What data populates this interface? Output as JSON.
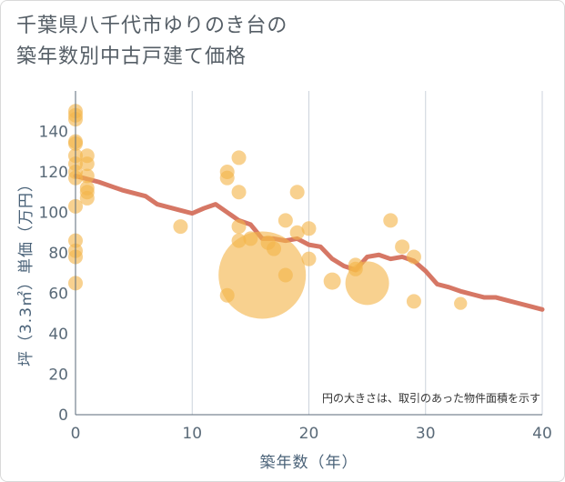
{
  "header": {
    "title_line1": "千葉県八千代市ゆりのき台の",
    "title_line2": "築年数別中古戸建て価格"
  },
  "chart_data": {
    "type": "scatter",
    "title": "千葉県八千代市ゆりのき台の築年数別中古戸建て価格",
    "xlabel": "築年数（年）",
    "ylabel": "坪（3.3㎡）単価（万円）",
    "xlim": [
      0,
      40
    ],
    "ylim": [
      0,
      160
    ],
    "xticks": [
      0,
      10,
      20,
      30,
      40
    ],
    "yticks": [
      0,
      20,
      40,
      60,
      80,
      100,
      120,
      140
    ],
    "grid": true,
    "note": "円の大きさは、取引のあった物件面積を示す",
    "colors": {
      "bubble": "#f3b54a",
      "line": "#d4705d",
      "grid": "#ccd3dc",
      "axis": "#5a6a78"
    },
    "points": [
      {
        "x": 0,
        "y": 150,
        "size": 1
      },
      {
        "x": 0,
        "y": 148,
        "size": 1
      },
      {
        "x": 0,
        "y": 146,
        "size": 1
      },
      {
        "x": 0,
        "y": 135,
        "size": 1
      },
      {
        "x": 0,
        "y": 134,
        "size": 1
      },
      {
        "x": 0,
        "y": 128,
        "size": 1
      },
      {
        "x": 0,
        "y": 124,
        "size": 1
      },
      {
        "x": 0,
        "y": 120,
        "size": 1
      },
      {
        "x": 0,
        "y": 117,
        "size": 1
      },
      {
        "x": 0,
        "y": 103,
        "size": 1
      },
      {
        "x": 0,
        "y": 86,
        "size": 1
      },
      {
        "x": 0,
        "y": 81,
        "size": 1
      },
      {
        "x": 0,
        "y": 78,
        "size": 1
      },
      {
        "x": 0,
        "y": 65,
        "size": 1
      },
      {
        "x": 1,
        "y": 128,
        "size": 1
      },
      {
        "x": 1,
        "y": 124,
        "size": 1
      },
      {
        "x": 1,
        "y": 118,
        "size": 1
      },
      {
        "x": 1,
        "y": 112,
        "size": 1
      },
      {
        "x": 1,
        "y": 110,
        "size": 1
      },
      {
        "x": 1,
        "y": 107,
        "size": 1
      },
      {
        "x": 9,
        "y": 93,
        "size": 1
      },
      {
        "x": 13,
        "y": 120,
        "size": 1
      },
      {
        "x": 13,
        "y": 117,
        "size": 1
      },
      {
        "x": 13,
        "y": 59,
        "size": 1
      },
      {
        "x": 14,
        "y": 127,
        "size": 1
      },
      {
        "x": 14,
        "y": 110,
        "size": 1
      },
      {
        "x": 14,
        "y": 93,
        "size": 1
      },
      {
        "x": 14,
        "y": 86,
        "size": 1
      },
      {
        "x": 15,
        "y": 87,
        "size": 1
      },
      {
        "x": 16,
        "y": 69,
        "size": 36
      },
      {
        "x": 16.5,
        "y": 85,
        "size": 1
      },
      {
        "x": 17,
        "y": 82,
        "size": 1
      },
      {
        "x": 18,
        "y": 96,
        "size": 1
      },
      {
        "x": 18,
        "y": 69,
        "size": 1
      },
      {
        "x": 19,
        "y": 110,
        "size": 1
      },
      {
        "x": 19,
        "y": 90,
        "size": 1
      },
      {
        "x": 20,
        "y": 92,
        "size": 1
      },
      {
        "x": 20,
        "y": 77,
        "size": 1
      },
      {
        "x": 22,
        "y": 66,
        "size": 1.4
      },
      {
        "x": 24,
        "y": 74,
        "size": 1
      },
      {
        "x": 24,
        "y": 72,
        "size": 1
      },
      {
        "x": 25,
        "y": 65,
        "size": 9
      },
      {
        "x": 27,
        "y": 96,
        "size": 1
      },
      {
        "x": 28,
        "y": 83,
        "size": 1
      },
      {
        "x": 29,
        "y": 78,
        "size": 1
      },
      {
        "x": 29,
        "y": 56,
        "size": 1
      },
      {
        "x": 33,
        "y": 55,
        "size": 0.8
      }
    ],
    "trend": {
      "x": [
        0,
        2,
        4,
        6,
        7,
        8,
        9,
        10,
        11,
        12,
        13,
        14,
        15,
        16,
        17,
        18,
        19,
        20,
        21,
        22,
        23,
        24,
        25,
        26,
        27,
        28,
        29,
        30,
        31,
        32,
        33,
        34,
        35,
        36,
        37,
        38,
        39,
        40
      ],
      "y": [
        118,
        115,
        111,
        108,
        104,
        102.5,
        101,
        99.5,
        102,
        104,
        100,
        96,
        94,
        87,
        87,
        86,
        87,
        84,
        83,
        77,
        73.5,
        71.5,
        78,
        79,
        77,
        78,
        76,
        71,
        64.5,
        63,
        61,
        59.5,
        58,
        58,
        56.5,
        55,
        53.5,
        52
      ]
    }
  }
}
